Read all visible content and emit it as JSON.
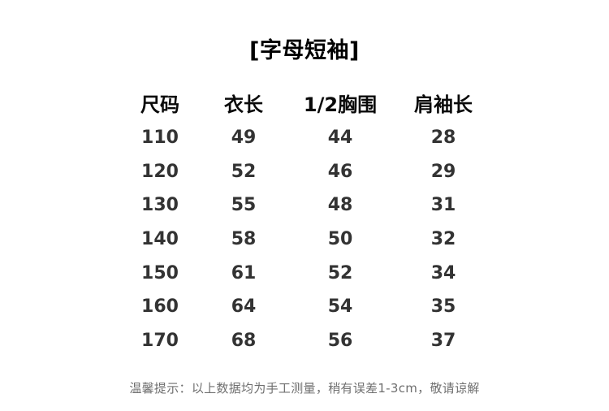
{
  "title": "[字母短袖]",
  "table": {
    "headers": [
      "尺码",
      "衣长",
      "1/2胸围",
      "肩袖长"
    ],
    "rows": [
      [
        "110",
        "49",
        "44",
        "28"
      ],
      [
        "120",
        "52",
        "46",
        "29"
      ],
      [
        "130",
        "55",
        "48",
        "31"
      ],
      [
        "140",
        "58",
        "50",
        "32"
      ],
      [
        "150",
        "61",
        "52",
        "34"
      ],
      [
        "160",
        "64",
        "54",
        "35"
      ],
      [
        "170",
        "68",
        "56",
        "37"
      ]
    ]
  },
  "footer": {
    "note": "温馨提示：以上数据均为手工测量，稍有误差1-3cm，敬请谅解"
  },
  "chart_data": {
    "type": "table",
    "title": "[字母短袖]",
    "columns": [
      "尺码",
      "衣长",
      "1/2胸围",
      "肩袖长"
    ],
    "rows": [
      [
        110,
        49,
        44,
        28
      ],
      [
        120,
        52,
        46,
        29
      ],
      [
        130,
        55,
        48,
        31
      ],
      [
        140,
        58,
        50,
        32
      ],
      [
        150,
        61,
        52,
        34
      ],
      [
        160,
        64,
        54,
        35
      ],
      [
        170,
        68,
        56,
        37
      ]
    ],
    "note": "温馨提示：以上数据均为手工测量，稍有误差1-3cm，敬请谅解"
  }
}
